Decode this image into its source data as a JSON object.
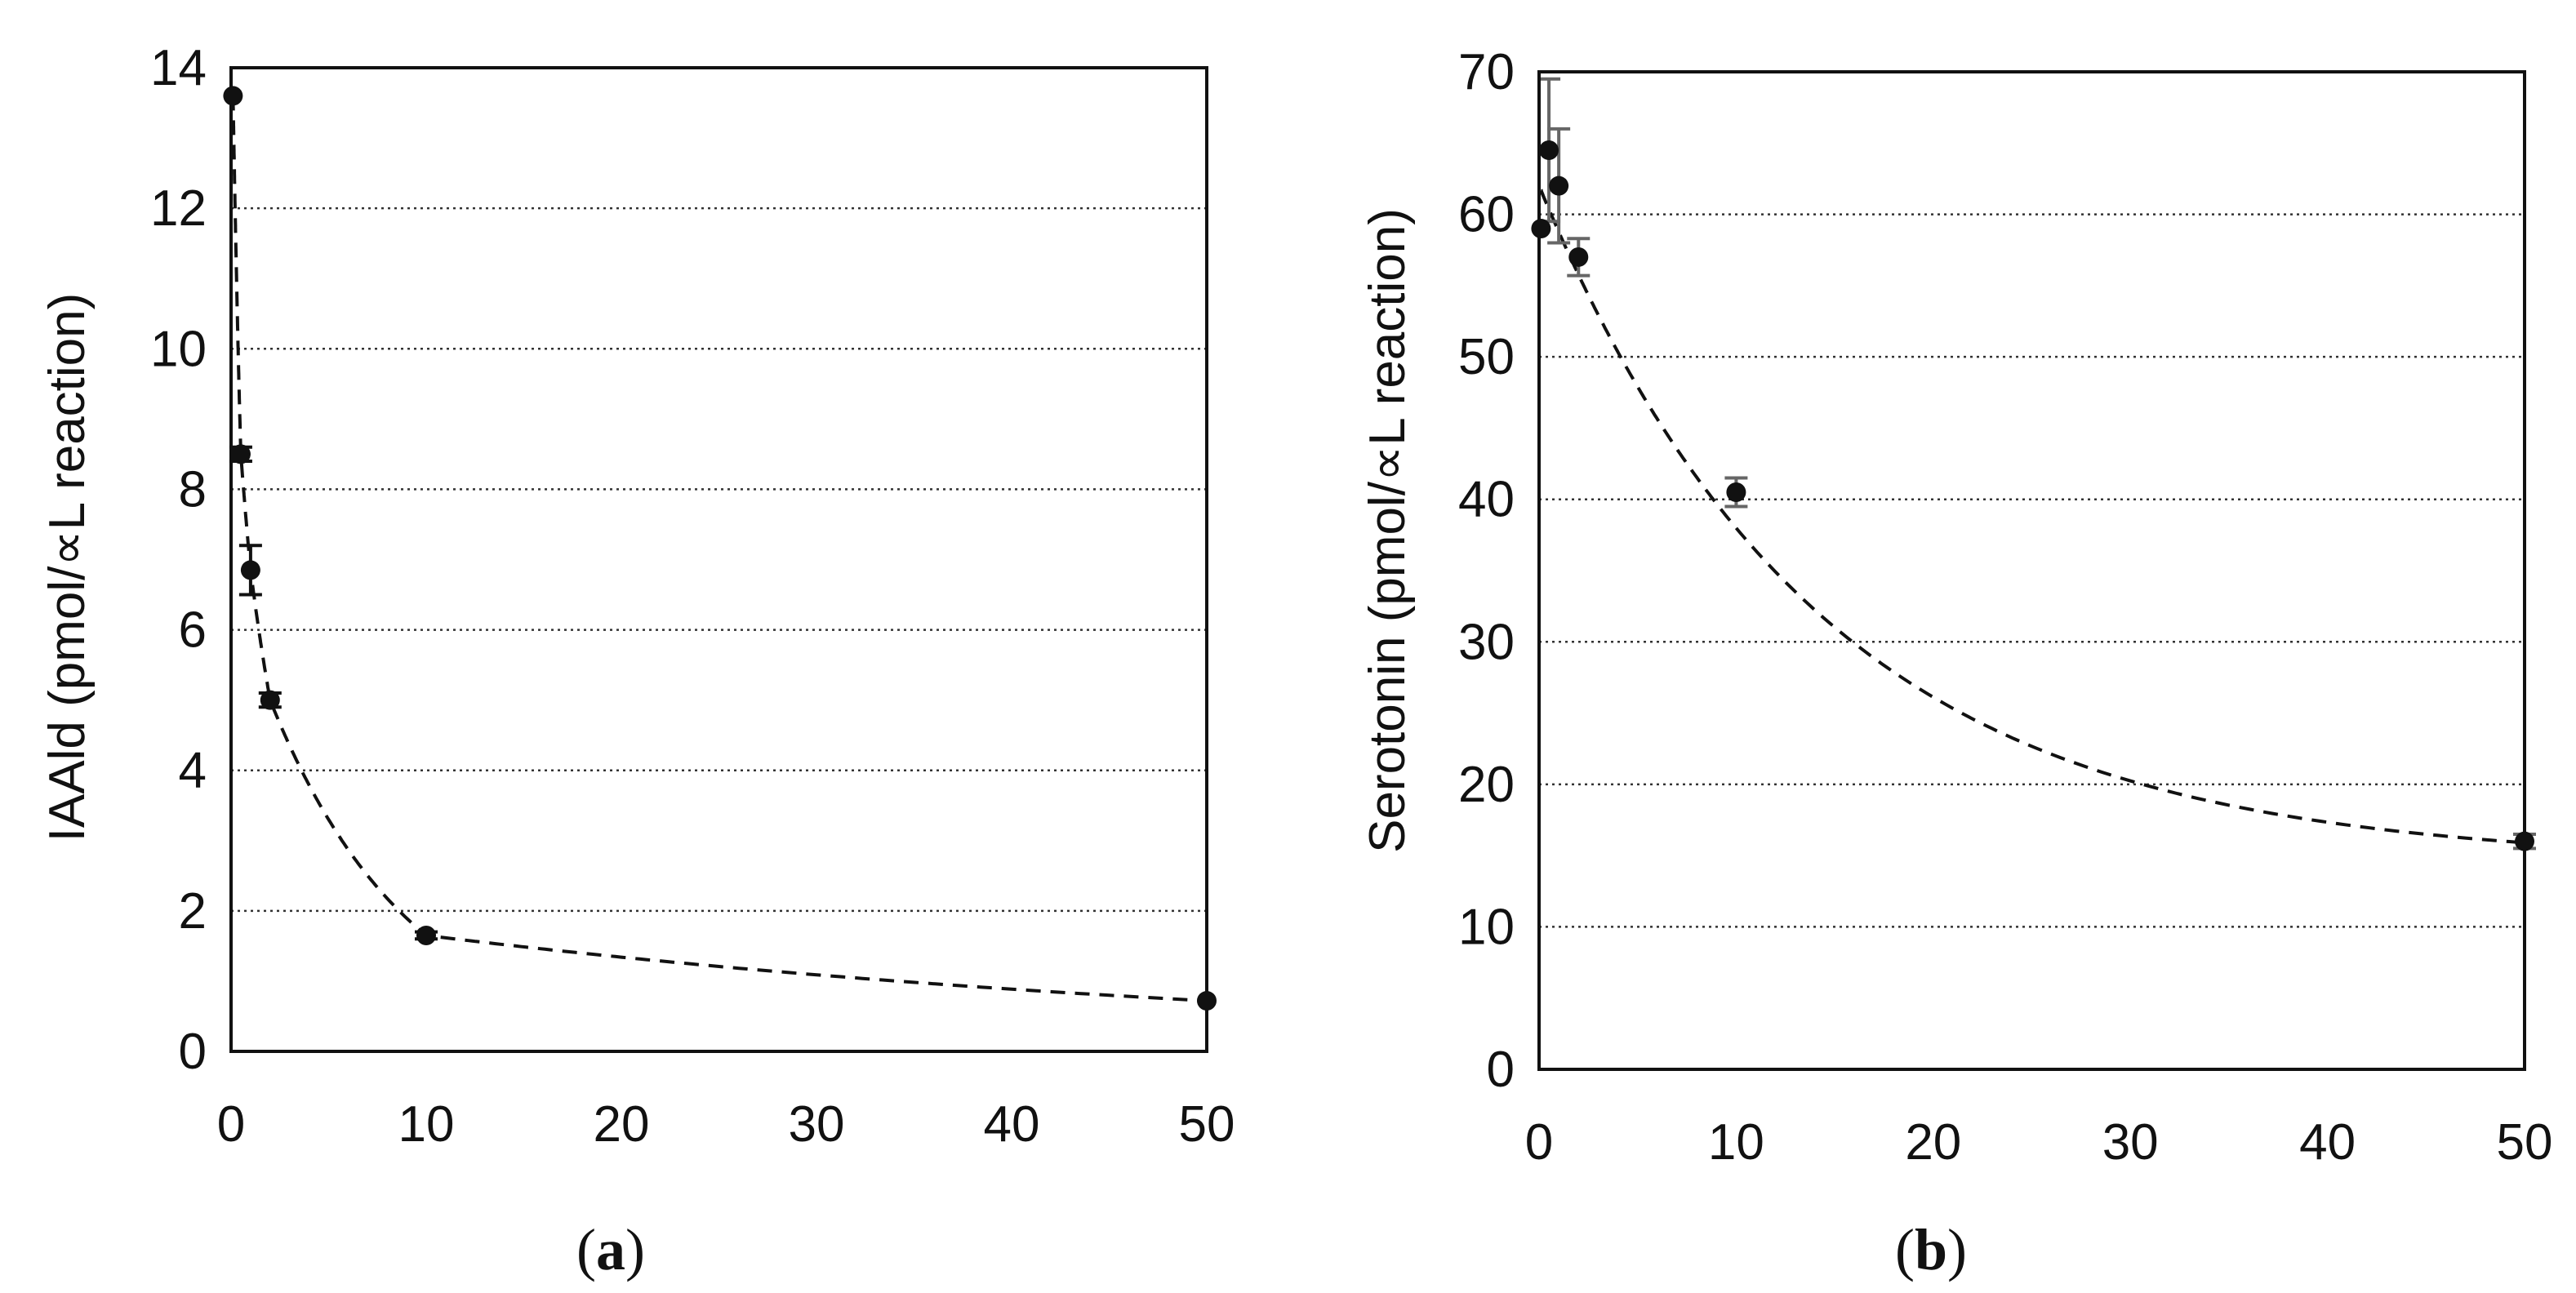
{
  "chart_data": [
    {
      "type": "scatter",
      "panel_label": "a",
      "title": "",
      "xlabel": "",
      "ylabel": "IAAld (pmol/∝L reaction)",
      "xlim": [
        0,
        50
      ],
      "ylim": [
        0,
        14
      ],
      "x_ticks": [
        "0",
        "10",
        "20",
        "30",
        "40",
        "50"
      ],
      "y_ticks": [
        "0",
        "2",
        "4",
        "6",
        "8",
        "10",
        "12",
        "14"
      ],
      "grid": "horizontal dotted",
      "series": [
        {
          "points": [
            {
              "x": 0.1,
              "y": 13.6,
              "err": 0
            },
            {
              "x": 0.5,
              "y": 8.5,
              "err": 0.1
            },
            {
              "x": 1,
              "y": 6.85,
              "err": 0.35
            },
            {
              "x": 2,
              "y": 5.0,
              "err": 0.1
            },
            {
              "x": 10,
              "y": 1.65,
              "err": 0.05
            },
            {
              "x": 50,
              "y": 0.72,
              "err": 0
            }
          ],
          "fit_curve": "dashed"
        }
      ]
    },
    {
      "type": "scatter",
      "panel_label": "b",
      "title": "",
      "xlabel": "",
      "ylabel": "Serotonin (pmol/∝L reaction)",
      "xlim": [
        0,
        50
      ],
      "ylim": [
        0,
        70
      ],
      "x_ticks": [
        "0",
        "10",
        "20",
        "30",
        "40",
        "50"
      ],
      "y_ticks": [
        "0",
        "10",
        "20",
        "30",
        "40",
        "50",
        "60",
        "70"
      ],
      "grid": "horizontal dotted",
      "series": [
        {
          "points": [
            {
              "x": 0.1,
              "y": 59,
              "err": 0
            },
            {
              "x": 0.5,
              "y": 64.5,
              "err": 5
            },
            {
              "x": 1,
              "y": 62,
              "err": 4
            },
            {
              "x": 2,
              "y": 57,
              "err": 1.3
            },
            {
              "x": 10,
              "y": 40.5,
              "err": 1
            },
            {
              "x": 50,
              "y": 16,
              "err": 0.5
            }
          ],
          "fit_curve": "dashed"
        }
      ]
    }
  ]
}
